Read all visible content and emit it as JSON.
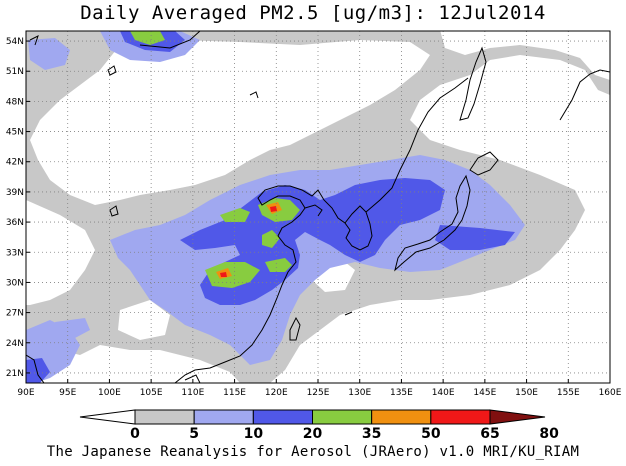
{
  "title": "Daily Averaged PM2.5 [ug/m3]: 12Jul2014",
  "footer": "The Japanese Reanalysis for Aerosol (JRAero) v1.0 MRI/KU_RIAM",
  "map": {
    "lon_range": [
      90,
      160
    ],
    "lat_range": [
      20,
      55
    ],
    "lon_ticks": [
      "90E",
      "95E",
      "100E",
      "105E",
      "110E",
      "115E",
      "120E",
      "125E",
      "130E",
      "135E",
      "140E",
      "145E",
      "150E",
      "155E",
      "160E"
    ],
    "lat_ticks": [
      "21N",
      "24N",
      "27N",
      "30N",
      "33N",
      "36N",
      "39N",
      "42N",
      "45N",
      "48N",
      "51N",
      "54N"
    ]
  },
  "colorbar": {
    "levels": [
      "0",
      "5",
      "10",
      "20",
      "35",
      "50",
      "65",
      "80"
    ],
    "colors": [
      "#ffffff",
      "#c8c8c8",
      "#a0a8f0",
      "#5058e8",
      "#88cc40",
      "#f09010",
      "#f01818",
      "#801010"
    ]
  }
}
